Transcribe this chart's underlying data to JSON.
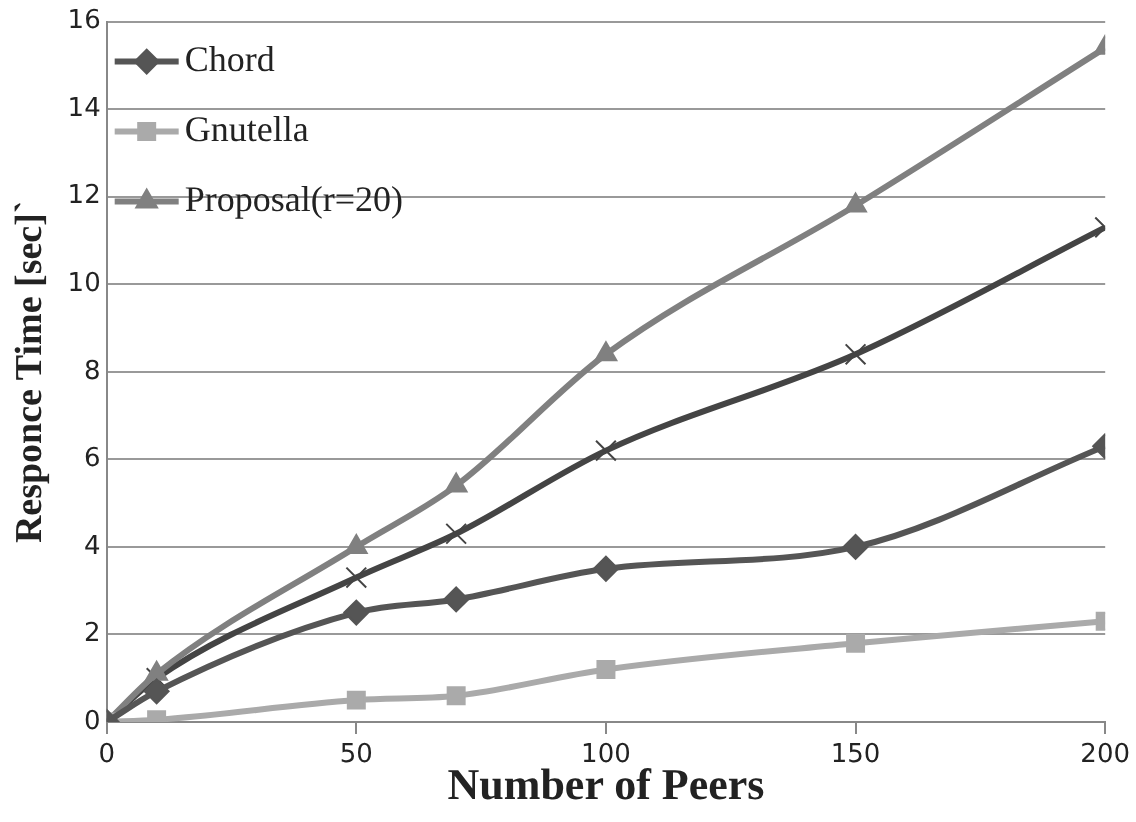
{
  "chart_data": {
    "type": "line",
    "xlabel": "Number of Peers",
    "ylabel": "Responce Time [sec]`",
    "x": [
      0,
      10,
      50,
      70,
      100,
      150,
      200
    ],
    "series": [
      {
        "name": "Chord",
        "color": "#555555",
        "marker": "diamond",
        "values": [
          0,
          0.7,
          2.5,
          2.8,
          3.5,
          4.0,
          6.3
        ]
      },
      {
        "name": "Gnutella",
        "color": "#aaaaaa",
        "marker": "square",
        "values": [
          0,
          0.05,
          0.5,
          0.6,
          1.2,
          1.8,
          2.3
        ]
      },
      {
        "name": "Proposal(r=20)",
        "color": "#808080",
        "marker": "triangle",
        "values": [
          0,
          1.1,
          4.0,
          5.4,
          8.4,
          11.8,
          15.4
        ]
      },
      {
        "color": "#444444",
        "marker": "cross",
        "values": [
          0,
          1.0,
          3.3,
          4.3,
          6.2,
          8.4,
          11.3
        ]
      }
    ],
    "xlim": [
      0,
      200
    ],
    "xticks": [
      0,
      50,
      100,
      150,
      200
    ],
    "ylim": [
      0,
      16
    ],
    "yticks": [
      0,
      2,
      4,
      6,
      8,
      10,
      12,
      14,
      16
    ],
    "grid": "y",
    "legend": "top left"
  }
}
